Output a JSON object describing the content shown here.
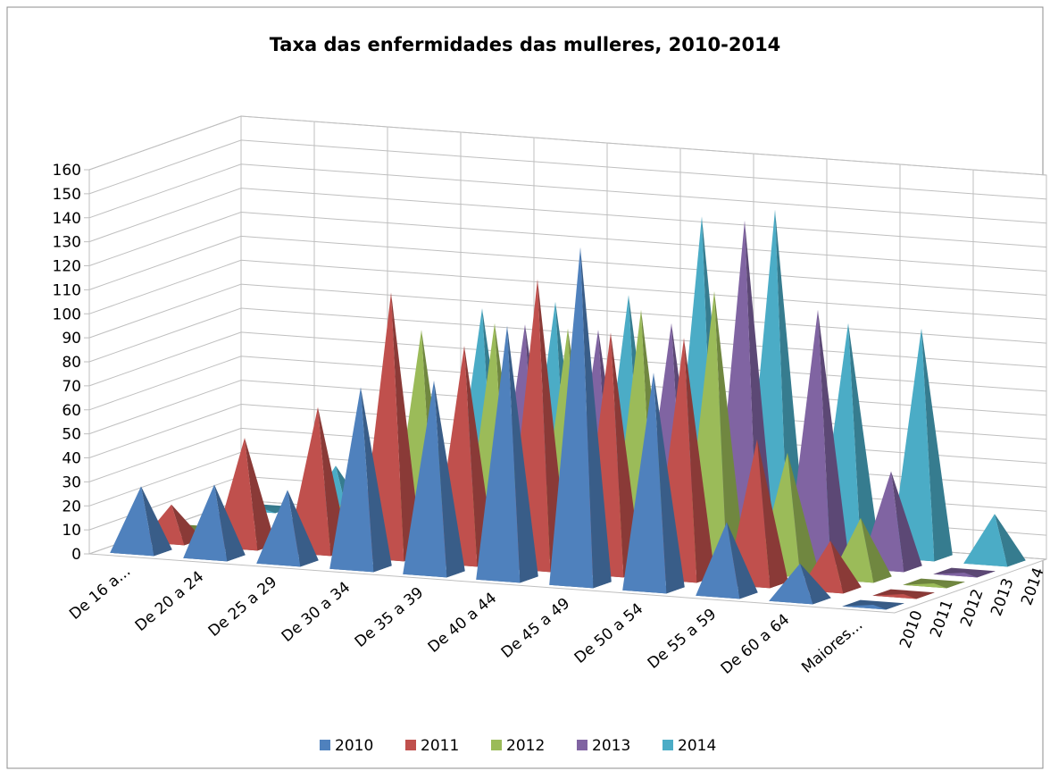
{
  "chart_data": {
    "type": "pyramid3d",
    "title": "Taxa das enfermidades das mulleres, 2010-2014",
    "categories": [
      "De 16 a...",
      "De 20 a 24",
      "De 25 a 29",
      "De 30 a 34",
      "De 35 a 39",
      "De 40 a 44",
      "De 45 a 49",
      "De 50 a 54",
      "De 55 a 59",
      "De 60 a 64",
      "Maiores..."
    ],
    "series": [
      {
        "name": "2010",
        "color": "#4f81bd",
        "values": [
          27,
          30,
          30,
          75,
          80,
          105,
          140,
          90,
          30,
          15,
          0
        ]
      },
      {
        "name": "2011",
        "color": "#c0504d",
        "values": [
          15,
          45,
          60,
          110,
          90,
          120,
          100,
          100,
          60,
          20,
          0
        ]
      },
      {
        "name": "2012",
        "color": "#9bbb59",
        "values": [
          0,
          0,
          20,
          90,
          95,
          95,
          105,
          115,
          50,
          25,
          0
        ]
      },
      {
        "name": "2013",
        "color": "#8064a2",
        "values": [
          0,
          0,
          0,
          0,
          90,
          90,
          95,
          140,
          105,
          40,
          0
        ]
      },
      {
        "name": "2014",
        "color": "#4bacc6",
        "values": [
          0,
          20,
          0,
          90,
          95,
          100,
          135,
          140,
          95,
          95,
          20
        ]
      }
    ],
    "ylim": [
      0,
      160
    ],
    "yticks": [
      0,
      10,
      20,
      30,
      40,
      50,
      60,
      70,
      80,
      90,
      100,
      110,
      120,
      130,
      140,
      150,
      160
    ],
    "grid": true,
    "legend": "bottom"
  }
}
